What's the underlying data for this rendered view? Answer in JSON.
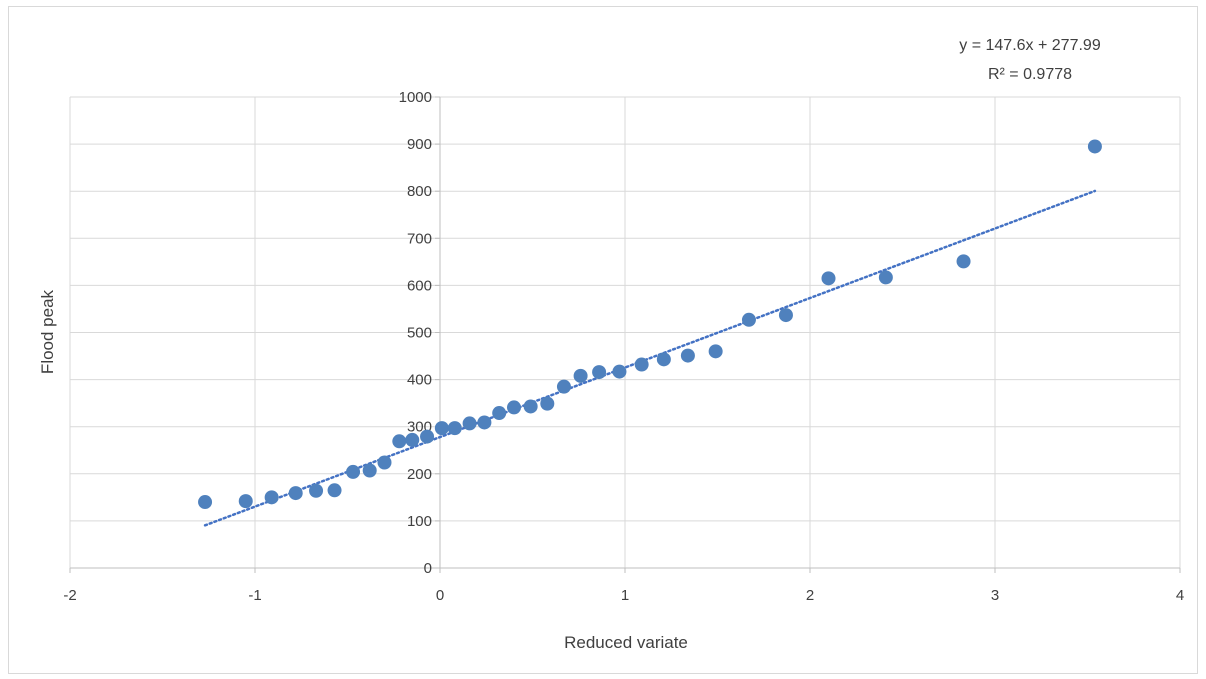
{
  "chart_data": {
    "type": "scatter",
    "xlabel": "Reduced variate",
    "ylabel": "Flood peak",
    "xlim": [
      -2,
      4
    ],
    "ylim": [
      0,
      1000
    ],
    "xticks": [
      -2,
      -1,
      0,
      1,
      2,
      3,
      4
    ],
    "yticks": [
      0,
      100,
      200,
      300,
      400,
      500,
      600,
      700,
      800,
      900,
      1000
    ],
    "grid": true,
    "marker_color": "#4f81bd",
    "trendline_color": "#4472c4",
    "trendline": {
      "type": "linear",
      "slope": 147.6,
      "intercept": 277.99,
      "x_range": [
        -1.27,
        3.54
      ],
      "equation_label": "y = 147.6x + 277.99",
      "r2_label": "R² = 0.9778"
    },
    "series": [
      {
        "points": [
          [
            -1.27,
            140
          ],
          [
            -1.05,
            142
          ],
          [
            -0.91,
            150
          ],
          [
            -0.78,
            159
          ],
          [
            -0.67,
            164
          ],
          [
            -0.57,
            165
          ],
          [
            -0.47,
            204
          ],
          [
            -0.38,
            207
          ],
          [
            -0.3,
            224
          ],
          [
            -0.22,
            269
          ],
          [
            -0.15,
            272
          ],
          [
            -0.07,
            279
          ],
          [
            0.01,
            297
          ],
          [
            0.08,
            297
          ],
          [
            0.16,
            307
          ],
          [
            0.24,
            309
          ],
          [
            0.32,
            329
          ],
          [
            0.4,
            341
          ],
          [
            0.49,
            343
          ],
          [
            0.58,
            349
          ],
          [
            0.67,
            385
          ],
          [
            0.76,
            408
          ],
          [
            0.86,
            416
          ],
          [
            0.97,
            417
          ],
          [
            1.09,
            432
          ],
          [
            1.21,
            443
          ],
          [
            1.34,
            451
          ],
          [
            1.49,
            460
          ],
          [
            1.67,
            527
          ],
          [
            1.87,
            537
          ],
          [
            2.1,
            615
          ],
          [
            2.41,
            617
          ],
          [
            2.83,
            651
          ],
          [
            3.54,
            895
          ]
        ]
      }
    ]
  }
}
